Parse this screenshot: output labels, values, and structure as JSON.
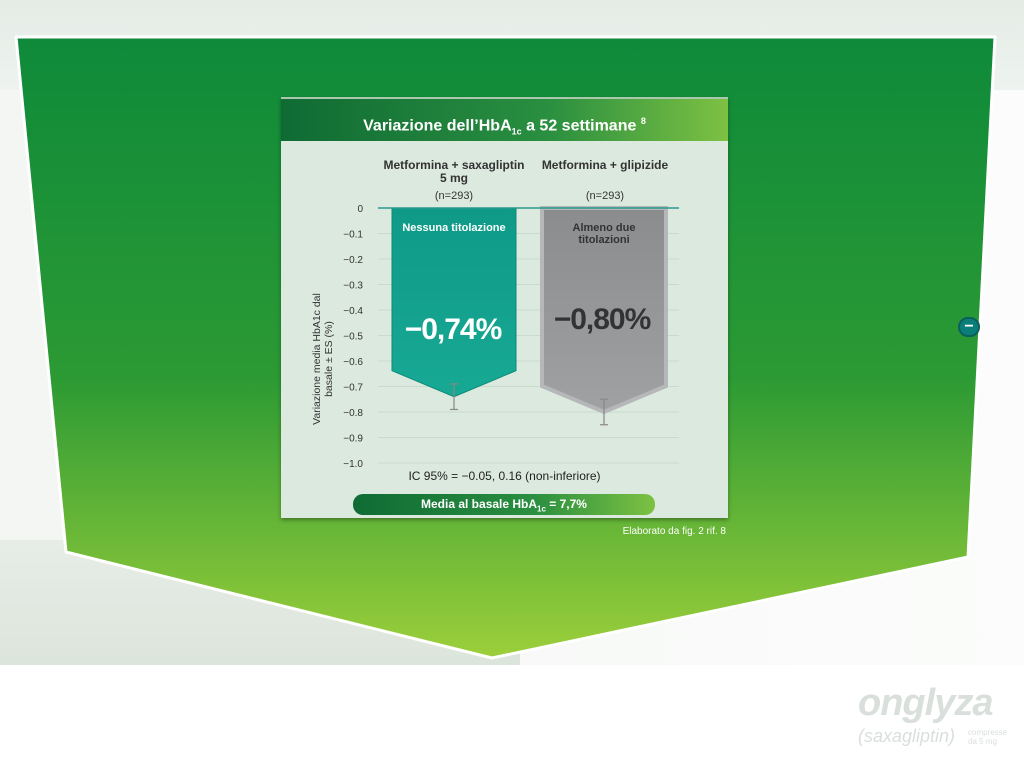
{
  "chart_data": {
    "type": "bar",
    "title": "Variazione dell’HbA",
    "title_sub": "1c",
    "title_rest": " a 52 settimane",
    "title_ref": "8",
    "categories": [
      {
        "title": "Metformina + saxagliptin 5 mg",
        "n": "(n=293)",
        "bar_label": "Nessuna titolazione",
        "value_label": "−0,74%"
      },
      {
        "title": "Metformina + glipizide",
        "n": "(n=293)",
        "bar_label": "Almeno due titolazioni",
        "value_label": "−0,80%"
      }
    ],
    "values": [
      -0.74,
      -0.8
    ],
    "errors": [
      0.05,
      0.05
    ],
    "colors": [
      "#119e8c",
      "#8c8e90"
    ],
    "ylabel": "Variazione media HbA1c dal basale ± ES (%)",
    "ylim": [
      -1.0,
      0
    ],
    "yticks": [
      "0",
      "−0.1",
      "−0.2",
      "−0.3",
      "−0.4",
      "−0.5",
      "−0.6",
      "−0.7",
      "−0.8",
      "−0.9",
      "−1.0"
    ],
    "grid": true
  },
  "ic_text": "IC 95% = −0.05, 0.16 (non-inferiore)",
  "baseline_text": "Media al basale HbA",
  "baseline_sub": "1c",
  "baseline_value": " = 7,7%",
  "source": "Elaborato da fig. 2 rif. 8",
  "minus_button": "−",
  "logo": {
    "brand": "onglyza",
    "generic": "(saxagliptin)",
    "small_1": "compresse",
    "small_2": "da 5 mg"
  }
}
